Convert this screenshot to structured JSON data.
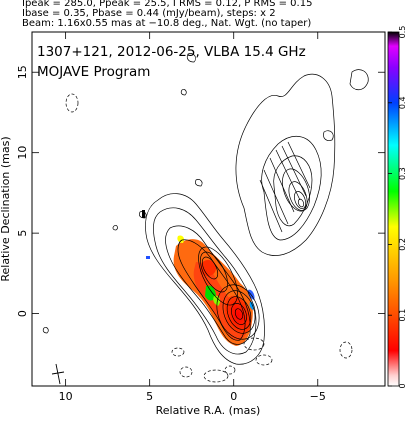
{
  "header": {
    "line1": "Ipeak = 285.0, Ppeak = 25.5, I RMS = 0.12, P RMS = 0.15",
    "line2": "Ibase = 0.35, Pbase = 0.44 (mJy/beam), steps: x 2",
    "line3": "Beam: 1.16x0.55 mas at −10.8 deg., Nat. Wgt. (no taper)"
  },
  "chart_data": {
    "type": "heatmap",
    "title": "1307+121, 2012-06-25, VLBA 15.4 GHz",
    "subtitle": "MOJAVE Program",
    "xlabel": "Relative R.A. (mas)",
    "ylabel": "Relative Declination (mas)",
    "xlim": [
      12,
      -9
    ],
    "ylim": [
      -4.5,
      17.5
    ],
    "x_ticks": [
      10,
      5,
      0,
      -5
    ],
    "x_tick_labels": [
      "10",
      "5",
      "0",
      "−5"
    ],
    "y_ticks": [
      0,
      5,
      10,
      15
    ],
    "y_tick_labels": [
      "0",
      "5",
      "10",
      "15"
    ],
    "colorbar": {
      "range": [
        0,
        0.5
      ],
      "ticks": [
        0,
        0.1,
        0.2,
        0.3,
        0.4,
        0.5
      ],
      "tick_labels": [
        "0",
        "0.1",
        "0.2",
        "0.3",
        "0.4",
        "0.5"
      ]
    },
    "core": {
      "x": 0,
      "y": 0
    },
    "jet_components": [
      {
        "x": 0.0,
        "y": 0.2
      },
      {
        "x": 1.0,
        "y": 1.6
      },
      {
        "x": 2.0,
        "y": 2.6
      },
      {
        "x": 3.0,
        "y": 3.6
      },
      {
        "x": -3.8,
        "y": 6.1
      }
    ],
    "contour_steps": 2,
    "grid": false
  }
}
